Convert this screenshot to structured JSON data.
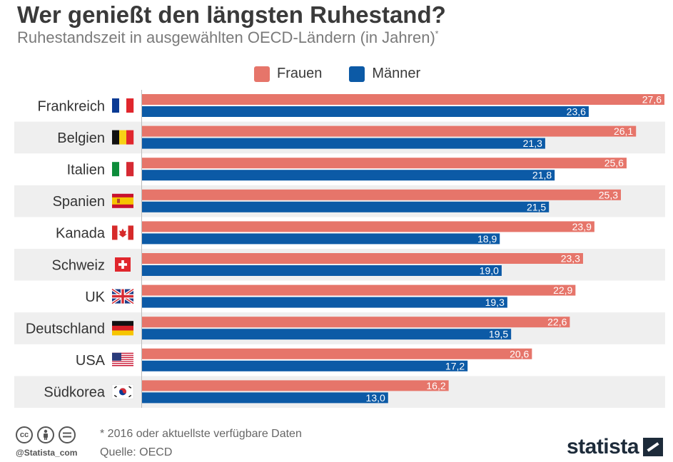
{
  "title": "Wer genießt den längsten Ruhestand?",
  "subtitle": "Ruhestandszeit in ausgewählten OECD-Ländern (in Jahren)",
  "subtitle_mark": "*",
  "legend": {
    "frauen": "Frauen",
    "maenner": "Männer"
  },
  "colors": {
    "frauen": "#e6756a",
    "maenner": "#0c5aa6",
    "row_alt": "#efefef",
    "axis": "#cccccc"
  },
  "chart_data": {
    "type": "bar",
    "orientation": "horizontal",
    "categories": [
      "Frankreich",
      "Belgien",
      "Italien",
      "Spanien",
      "Kanada",
      "Schweiz",
      "UK",
      "Deutschland",
      "USA",
      "Südkorea"
    ],
    "series": [
      {
        "name": "Frauen",
        "values": [
          27.6,
          26.1,
          25.6,
          25.3,
          23.9,
          23.3,
          22.9,
          22.6,
          20.6,
          16.2
        ],
        "labels": [
          "27,6",
          "26,1",
          "25,6",
          "25,3",
          "23,9",
          "23,3",
          "22,9",
          "22,6",
          "20,6",
          "16,2"
        ]
      },
      {
        "name": "Männer",
        "values": [
          23.6,
          21.3,
          21.8,
          21.5,
          18.9,
          19.0,
          19.3,
          19.5,
          17.2,
          13.0
        ],
        "labels": [
          "23,6",
          "21,3",
          "21,8",
          "21,5",
          "18,9",
          "19,0",
          "19,3",
          "19,5",
          "17,2",
          "13,0"
        ]
      }
    ],
    "xlim": [
      0,
      27.6
    ],
    "flags": [
      "flag-france",
      "flag-belgium",
      "flag-italy",
      "flag-spain",
      "flag-canada",
      "flag-switzerland",
      "flag-uk",
      "flag-germany",
      "flag-usa",
      "flag-south-korea"
    ]
  },
  "footer": {
    "note": "* 2016 oder aktuellste verfügbare Daten",
    "source": "Quelle: OECD",
    "handle": "@Statista_com",
    "brand": "statista",
    "cc_icons": [
      "creative-commons-icon",
      "attribution-icon",
      "no-derivatives-icon"
    ]
  }
}
